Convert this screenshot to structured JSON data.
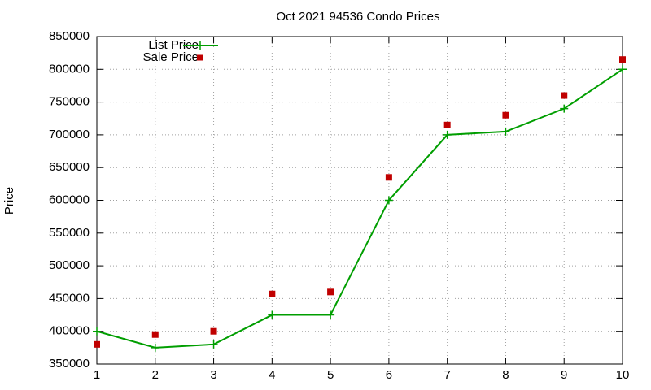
{
  "chart_data": {
    "type": "line",
    "title": "Oct 2021 94536 Condo Prices",
    "y_label": "Price",
    "x": [
      1,
      2,
      3,
      4,
      5,
      6,
      7,
      8,
      9,
      10
    ],
    "series": [
      {
        "name": "List Price",
        "color": "#009e00",
        "mode": "lines+markers",
        "values": [
          400000,
          375000,
          380000,
          425000,
          425000,
          600000,
          700000,
          705000,
          740000,
          800000
        ]
      },
      {
        "name": "Sale Price",
        "color": "#c00000",
        "mode": "markers",
        "values": [
          380000,
          395000,
          400000,
          457000,
          460000,
          635000,
          715000,
          730000,
          760000,
          815000
        ]
      }
    ],
    "xlim": [
      1,
      10
    ],
    "xticks": [
      1,
      2,
      3,
      4,
      5,
      6,
      7,
      8,
      9,
      10
    ],
    "ylim": [
      350000,
      850000
    ],
    "yticks": [
      350000,
      400000,
      450000,
      500000,
      550000,
      600000,
      650000,
      700000,
      750000,
      800000,
      850000
    ],
    "grid": true,
    "legend": "top-left"
  }
}
